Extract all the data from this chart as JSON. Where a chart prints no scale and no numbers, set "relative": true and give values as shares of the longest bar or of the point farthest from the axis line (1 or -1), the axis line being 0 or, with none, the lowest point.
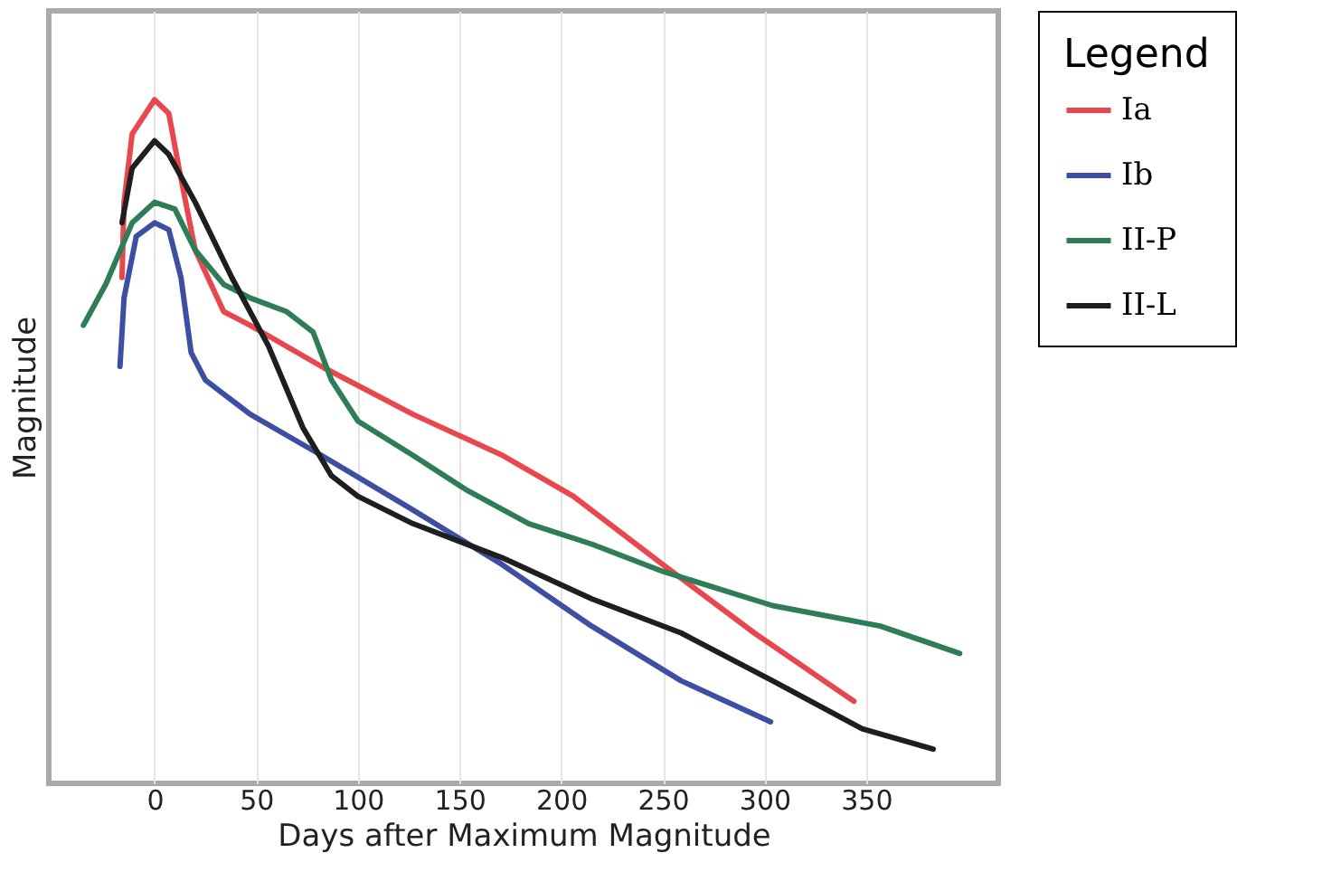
{
  "chart_data": {
    "type": "line",
    "xlabel": "Days after Maximum Magnitude",
    "ylabel": "Magnitude",
    "legend_title": "Legend",
    "relative": true,
    "xlim": [
      -52,
      415
    ],
    "xticks": [
      0,
      50,
      100,
      150,
      200,
      250,
      300,
      350
    ],
    "grid": "x",
    "legend": "right",
    "marker": "none",
    "line_style": "solid",
    "series": [
      {
        "name": "Ia",
        "color": "#e8474e",
        "x": [
          -16,
          -15,
          -11,
          0,
          7,
          12,
          20,
          34,
          47,
          82,
          127,
          171,
          206,
          250,
          295,
          344
        ],
        "values": [
          0.74,
          0.85,
          0.95,
          1.0,
          0.98,
          0.9,
          0.78,
          0.69,
          0.67,
          0.61,
          0.54,
          0.48,
          0.42,
          0.32,
          0.22,
          0.12
        ]
      },
      {
        "name": "Ib",
        "color": "#3d4fa3",
        "x": [
          -17,
          -15,
          -9,
          0,
          7,
          13,
          18,
          25,
          47,
          82,
          127,
          171,
          215,
          259,
          303
        ],
        "values": [
          0.61,
          0.71,
          0.8,
          0.82,
          0.81,
          0.74,
          0.63,
          0.59,
          0.54,
          0.48,
          0.4,
          0.32,
          0.23,
          0.15,
          0.09
        ]
      },
      {
        "name": "II-P",
        "color": "#2e7d57",
        "x": [
          -35,
          -24,
          -11,
          0,
          10,
          20,
          34,
          47,
          65,
          78,
          87,
          100,
          127,
          153,
          184,
          215,
          250,
          304,
          357,
          396
        ],
        "values": [
          0.67,
          0.73,
          0.82,
          0.85,
          0.84,
          0.78,
          0.73,
          0.71,
          0.69,
          0.66,
          0.59,
          0.53,
          0.48,
          0.43,
          0.38,
          0.35,
          0.31,
          0.26,
          0.23,
          0.19
        ]
      },
      {
        "name": "II-L",
        "color": "#1e1e1e",
        "x": [
          -16,
          -11,
          0,
          7,
          20,
          38,
          56,
          73,
          87,
          100,
          127,
          171,
          215,
          259,
          304,
          348,
          383
        ],
        "values": [
          0.82,
          0.9,
          0.94,
          0.92,
          0.85,
          0.74,
          0.64,
          0.52,
          0.45,
          0.42,
          0.38,
          0.33,
          0.27,
          0.22,
          0.15,
          0.08,
          0.05
        ]
      }
    ]
  }
}
